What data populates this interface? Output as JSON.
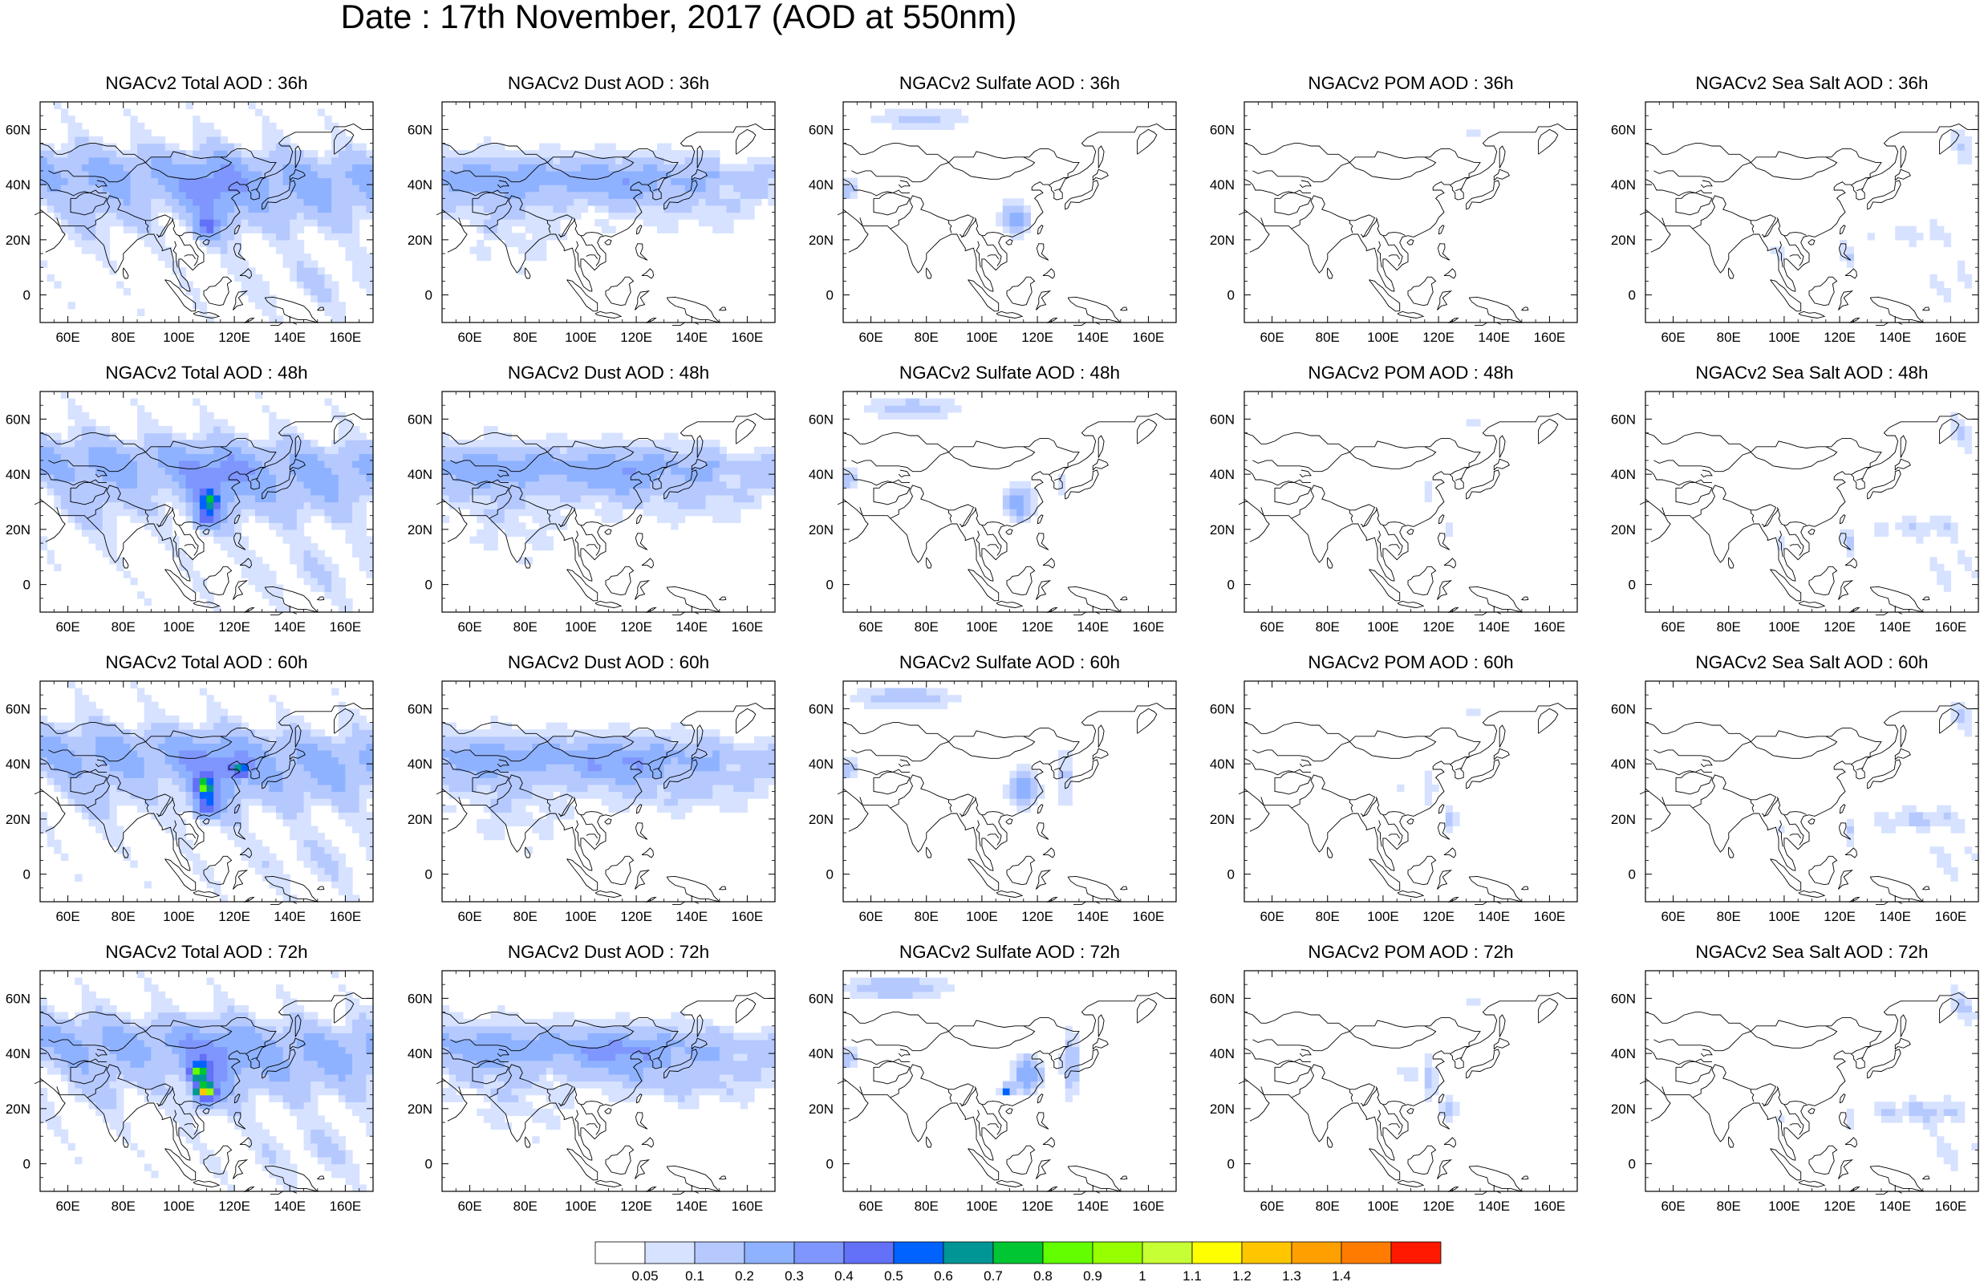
{
  "title": "Date : 17th November, 2017 (AOD at 550nm)",
  "panels": [
    {
      "title": "NGACv2 Total AOD : 36h",
      "species": "total",
      "hour": 36
    },
    {
      "title": "NGACv2 Dust AOD : 36h",
      "species": "dust",
      "hour": 36
    },
    {
      "title": "NGACv2 Sulfate AOD : 36h",
      "species": "sulfate",
      "hour": 36
    },
    {
      "title": "NGACv2 POM AOD : 36h",
      "species": "pom",
      "hour": 36
    },
    {
      "title": "NGACv2 Sea Salt AOD : 36h",
      "species": "seasalt",
      "hour": 36
    },
    {
      "title": "NGACv2 Total AOD : 48h",
      "species": "total",
      "hour": 48
    },
    {
      "title": "NGACv2 Dust AOD : 48h",
      "species": "dust",
      "hour": 48
    },
    {
      "title": "NGACv2 Sulfate AOD : 48h",
      "species": "sulfate",
      "hour": 48
    },
    {
      "title": "NGACv2 POM AOD : 48h",
      "species": "pom",
      "hour": 48
    },
    {
      "title": "NGACv2 Sea Salt AOD : 48h",
      "species": "seasalt",
      "hour": 48
    },
    {
      "title": "NGACv2 Total AOD : 60h",
      "species": "total",
      "hour": 60
    },
    {
      "title": "NGACv2 Dust AOD : 60h",
      "species": "dust",
      "hour": 60
    },
    {
      "title": "NGACv2 Sulfate AOD : 60h",
      "species": "sulfate",
      "hour": 60
    },
    {
      "title": "NGACv2 POM AOD : 60h",
      "species": "pom",
      "hour": 60
    },
    {
      "title": "NGACv2 Sea Salt AOD : 60h",
      "species": "seasalt",
      "hour": 60
    },
    {
      "title": "NGACv2 Total AOD : 72h",
      "species": "total",
      "hour": 72
    },
    {
      "title": "NGACv2 Dust AOD : 72h",
      "species": "dust",
      "hour": 72
    },
    {
      "title": "NGACv2 Sulfate AOD : 72h",
      "species": "sulfate",
      "hour": 72
    },
    {
      "title": "NGACv2 POM AOD : 72h",
      "species": "pom",
      "hour": 72
    },
    {
      "title": "NGACv2 Sea Salt  AOD : 72h",
      "species": "seasalt",
      "hour": 72
    }
  ],
  "map_extent": {
    "lon": [
      50,
      170
    ],
    "lat": [
      -10,
      70
    ]
  },
  "lon_ticks": [
    60,
    80,
    100,
    120,
    140,
    160
  ],
  "lon_tick_labels": [
    "60E",
    "80E",
    "100E",
    "120E",
    "140E",
    "160E"
  ],
  "lat_ticks": [
    0,
    20,
    40,
    60
  ],
  "lat_tick_labels": [
    "0",
    "20N",
    "40N",
    "60N"
  ],
  "colorbar": {
    "colors": [
      "#ffffff",
      "#d6e2ff",
      "#b5c9ff",
      "#8eb2ff",
      "#7f96ff",
      "#6370f8",
      "#0063ff",
      "#009696",
      "#00c633",
      "#63ff00",
      "#96ff00",
      "#c6ff33",
      "#ffff00",
      "#ffc600",
      "#ffa000",
      "#ff7c00",
      "#ff1900"
    ],
    "labels": [
      "0.05",
      "0.1",
      "0.2",
      "0.3",
      "0.4",
      "0.5",
      "0.6",
      "0.7",
      "0.8",
      "0.9",
      "1",
      "1.1",
      "1.2",
      "1.3",
      "1.4"
    ]
  },
  "colors": {
    "land_outline": "#000000",
    "frame": "#000000"
  }
}
